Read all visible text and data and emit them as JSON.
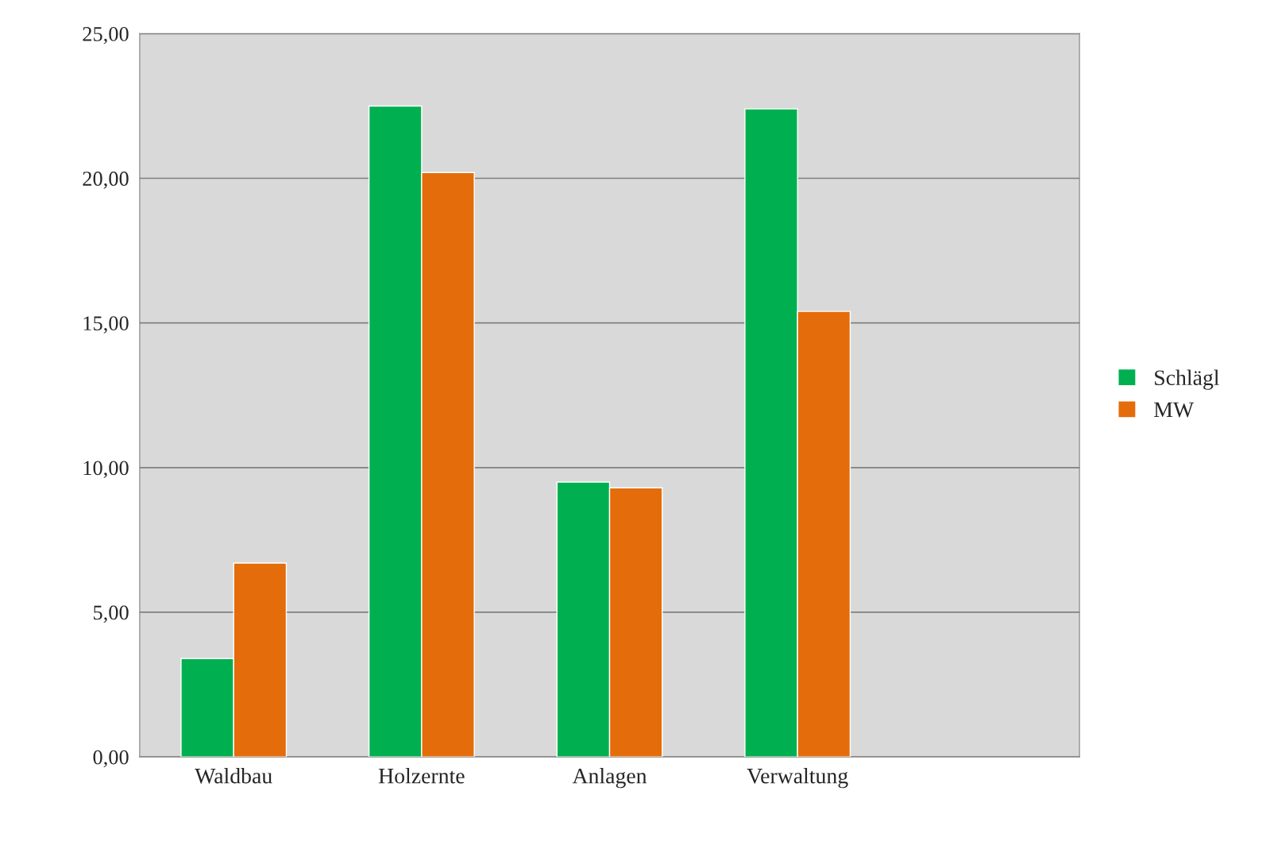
{
  "chart_data": {
    "type": "bar",
    "categories": [
      "Waldbau",
      "Holzernte",
      "Anlagen",
      "Verwaltung",
      null
    ],
    "series": [
      {
        "name": "Schlägl",
        "color": "#00b050",
        "values": [
          3.4,
          22.5,
          9.5,
          22.4,
          null
        ]
      },
      {
        "name": "MW",
        "color": "#e46c0a",
        "values": [
          6.7,
          20.2,
          9.3,
          15.4,
          null
        ]
      }
    ],
    "ylim": [
      0,
      25
    ],
    "yticks": [
      {
        "value": 0,
        "label": "0,00"
      },
      {
        "value": 5,
        "label": "5,00"
      },
      {
        "value": 10,
        "label": "10,00"
      },
      {
        "value": 15,
        "label": "15,00"
      },
      {
        "value": 20,
        "label": "20,00"
      },
      {
        "value": 25,
        "label": "25,00"
      }
    ],
    "grid": "y",
    "legend": "right"
  }
}
